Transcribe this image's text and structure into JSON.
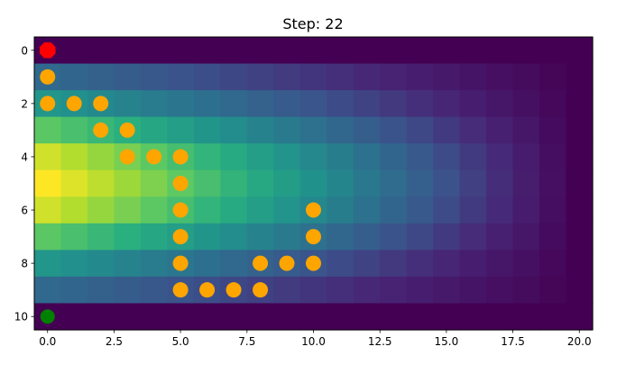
{
  "chart_data": {
    "type": "heatmap",
    "title": "Step: 22",
    "xlabel": "",
    "ylabel": "",
    "xlim": [
      -0.5,
      20.5
    ],
    "ylim": [
      10.5,
      -0.5
    ],
    "y_inverted": true,
    "grid": false,
    "x_ticks": [
      0.0,
      2.5,
      5.0,
      7.5,
      10.0,
      12.5,
      15.0,
      17.5,
      20.0
    ],
    "x_tick_labels": [
      "0.0",
      "2.5",
      "5.0",
      "7.5",
      "10.0",
      "12.5",
      "15.0",
      "17.5",
      "20.0"
    ],
    "y_ticks": [
      0,
      2,
      4,
      6,
      8,
      10
    ],
    "y_tick_labels": [
      "0",
      "2",
      "4",
      "6",
      "8",
      "10"
    ],
    "colormap": "viridis",
    "grid_size": {
      "rows": 11,
      "cols": 21
    },
    "row_peaks": [
      0,
      0.34,
      0.52,
      0.74,
      0.93,
      1.0,
      0.93,
      0.74,
      0.52,
      0.34,
      0
    ],
    "path_points": [
      {
        "x": 0,
        "y": 1
      },
      {
        "x": 0,
        "y": 2
      },
      {
        "x": 1,
        "y": 2
      },
      {
        "x": 2,
        "y": 2
      },
      {
        "x": 2,
        "y": 3
      },
      {
        "x": 3,
        "y": 3
      },
      {
        "x": 3,
        "y": 4
      },
      {
        "x": 4,
        "y": 4
      },
      {
        "x": 5,
        "y": 4
      },
      {
        "x": 5,
        "y": 5
      },
      {
        "x": 5,
        "y": 6
      },
      {
        "x": 5,
        "y": 7
      },
      {
        "x": 5,
        "y": 8
      },
      {
        "x": 5,
        "y": 9
      },
      {
        "x": 6,
        "y": 9
      },
      {
        "x": 7,
        "y": 9
      },
      {
        "x": 8,
        "y": 9
      },
      {
        "x": 8,
        "y": 8
      },
      {
        "x": 9,
        "y": 8
      },
      {
        "x": 10,
        "y": 8
      },
      {
        "x": 10,
        "y": 7
      },
      {
        "x": 10,
        "y": 6
      }
    ],
    "path_color": "#ffa500",
    "start_point": {
      "x": 0,
      "y": 10
    },
    "start_color": "#008000",
    "current_point": {
      "x": 0,
      "y": 0
    },
    "current_color": "#ff0000"
  }
}
